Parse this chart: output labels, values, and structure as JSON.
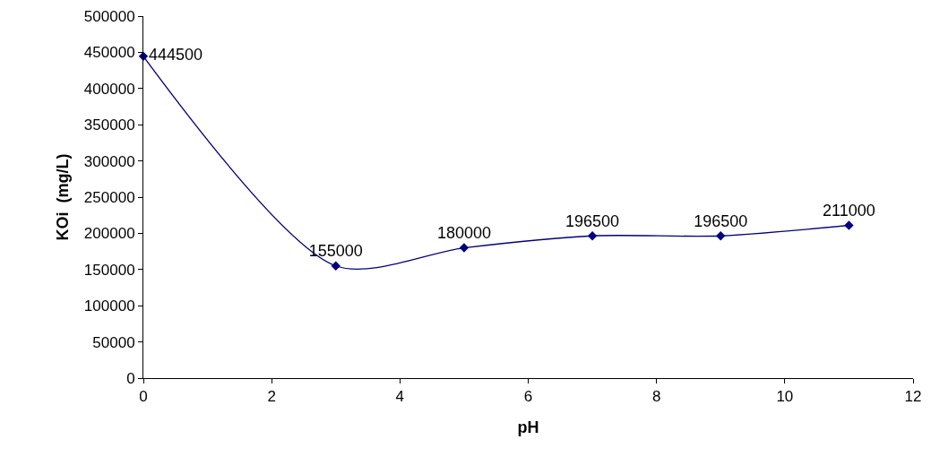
{
  "chart_data": {
    "type": "line",
    "xlabel": "pH",
    "ylabel": "KOi  (mg/L)",
    "x": [
      0,
      3,
      5,
      7,
      9,
      11
    ],
    "series": [
      {
        "color": "#000080",
        "values": [
          444500,
          155000,
          180000,
          196500,
          196500,
          211000
        ]
      }
    ],
    "xlim": [
      0,
      12
    ],
    "xticks": [
      0,
      2,
      4,
      6,
      8,
      10,
      12
    ],
    "ylim": [
      0,
      500000
    ],
    "yticks": [
      0,
      50000,
      100000,
      150000,
      200000,
      250000,
      300000,
      350000,
      400000,
      450000,
      500000
    ],
    "grid": false,
    "marker": "diamond",
    "line_style": "solid",
    "data_labels": true
  }
}
